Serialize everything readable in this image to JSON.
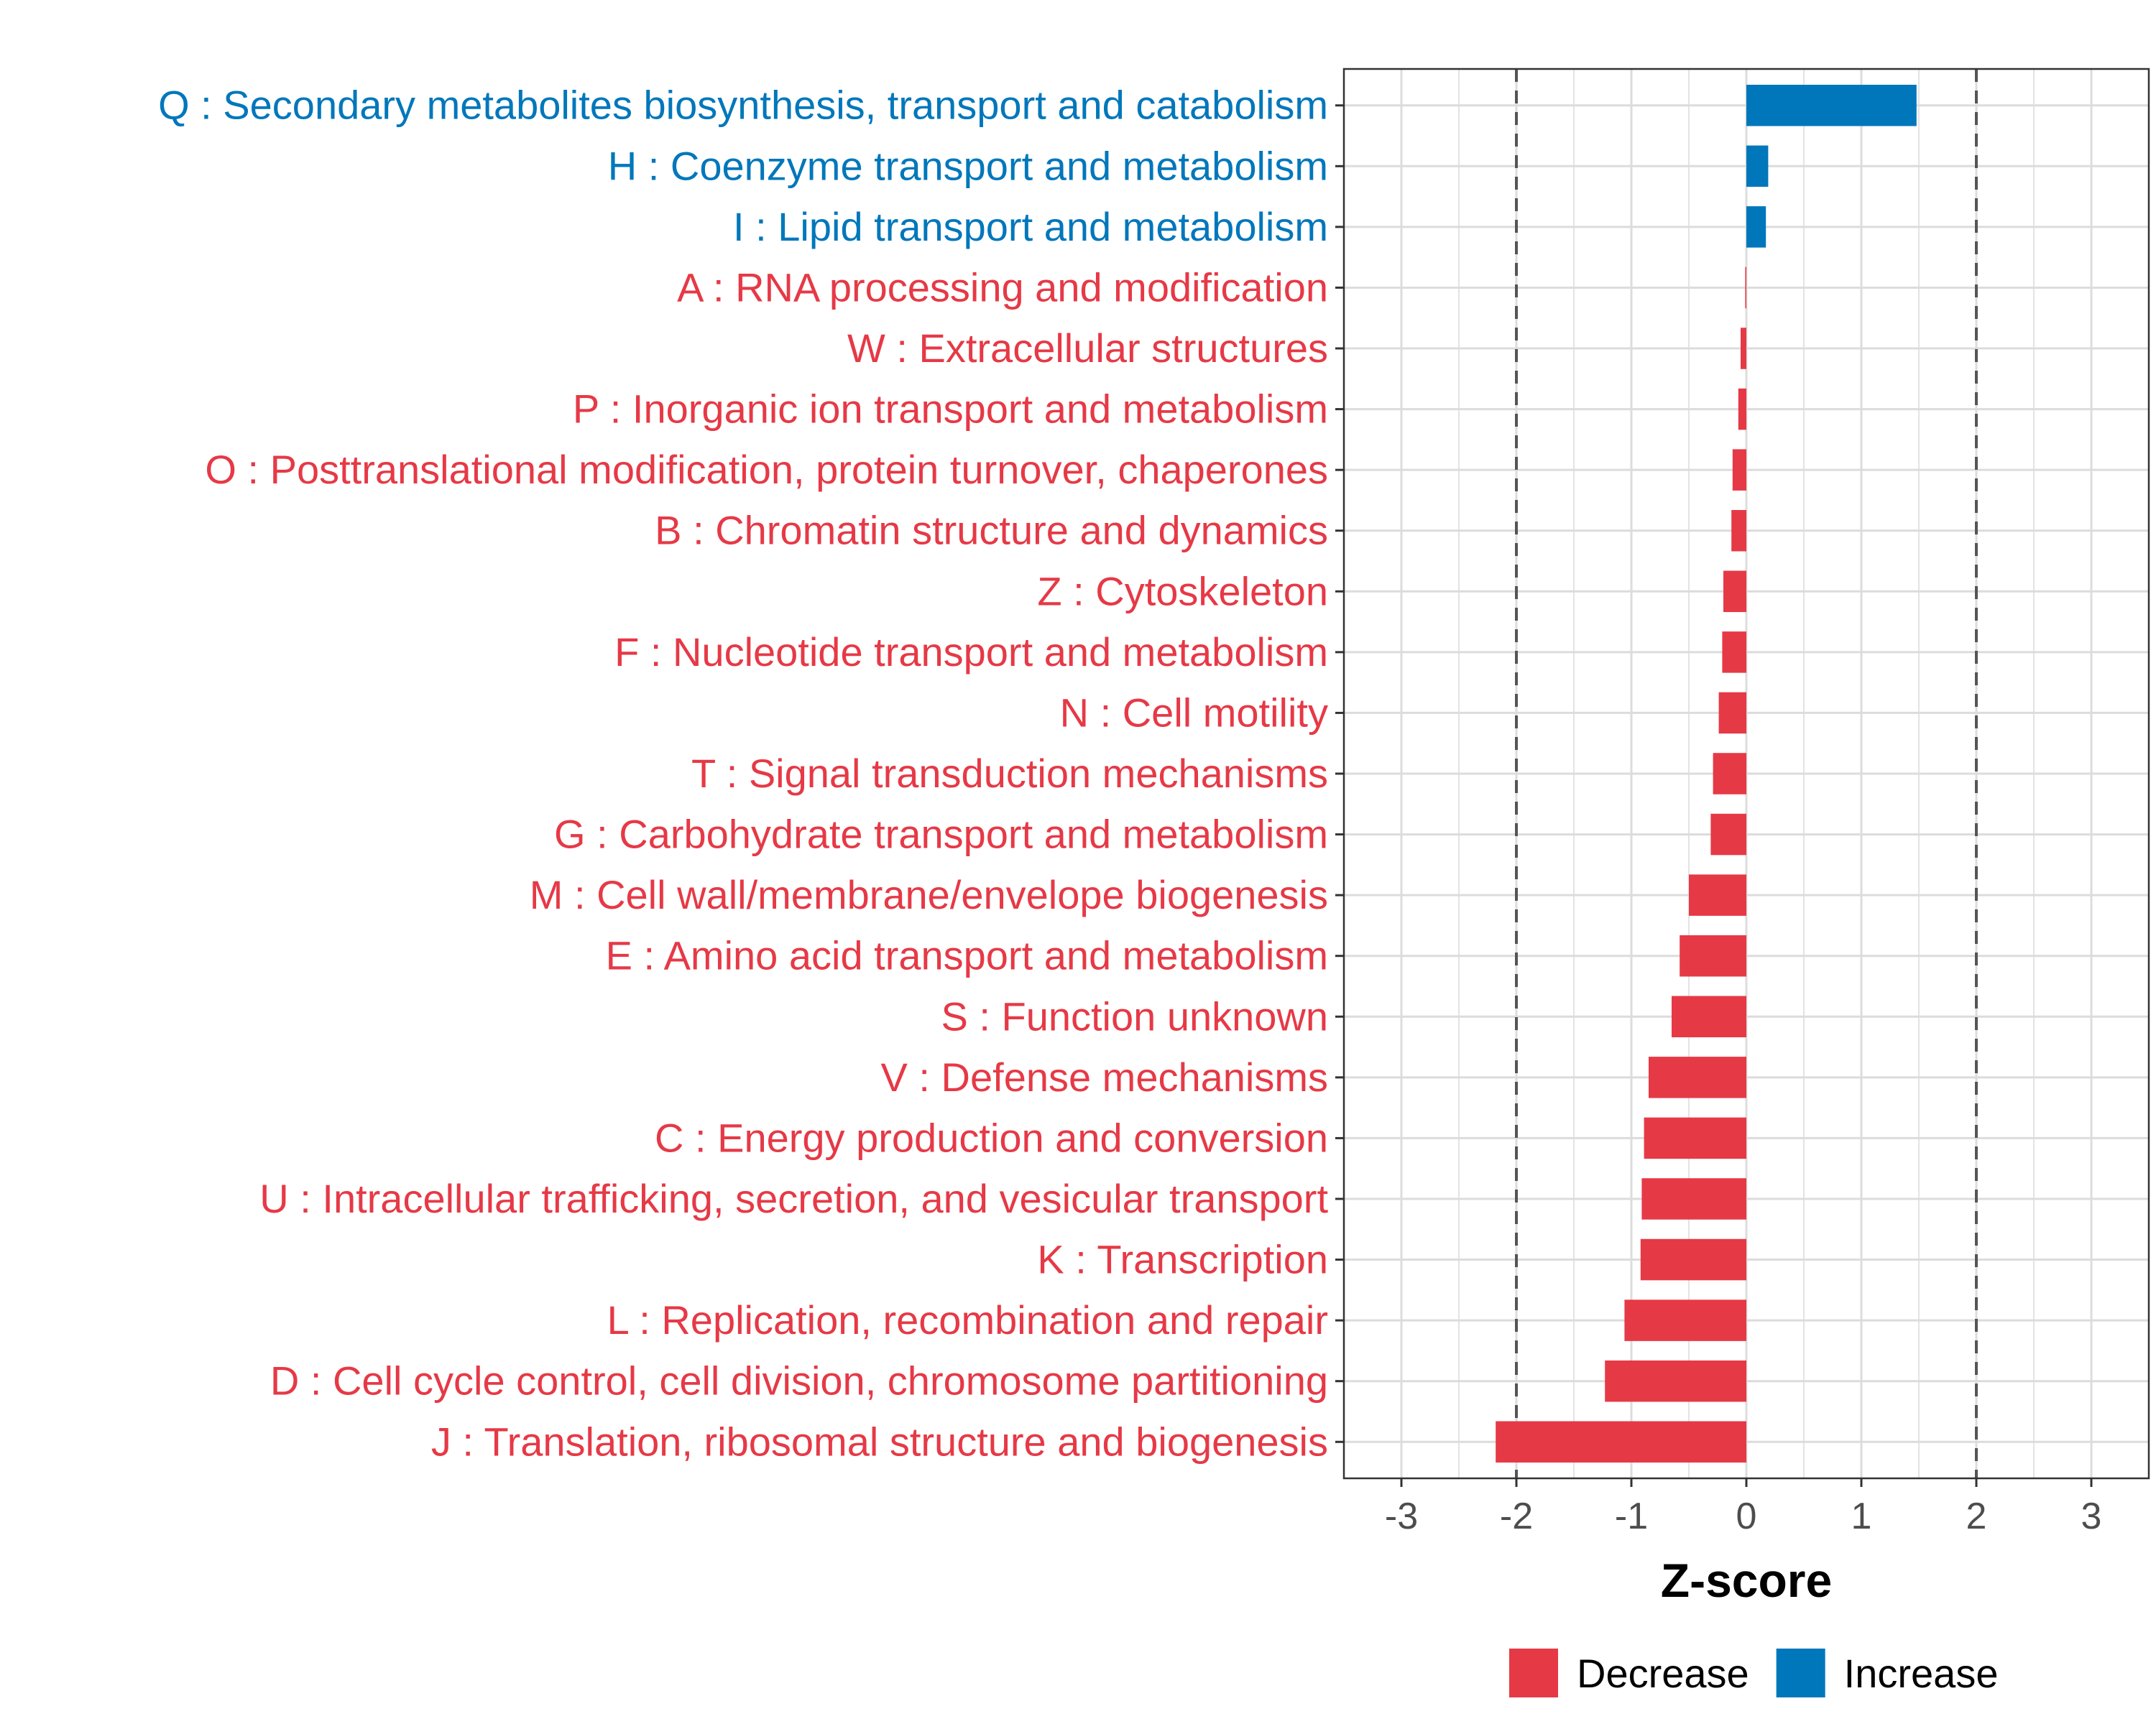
{
  "colors": {
    "decrease": "#E63946",
    "increase": "#0077BB",
    "grid": "#DCDCDC",
    "panel_border": "#333333",
    "ref_line": "#555555"
  },
  "chart_data": {
    "type": "bar",
    "orientation": "horizontal",
    "title": "",
    "xlabel": "Z-score",
    "ylabel": "",
    "xlim": [
      -3.5,
      3.5
    ],
    "xticks": [
      -3,
      -2,
      -1,
      0,
      1,
      2,
      3
    ],
    "xtick_labels": [
      "-3",
      "-2",
      "-1",
      "0",
      "1",
      "2",
      "3"
    ],
    "reference_lines": [
      -2,
      2
    ],
    "grid": true,
    "legend_position": "bottom",
    "legend": [
      {
        "key": "decrease",
        "label": "Decrease"
      },
      {
        "key": "increase",
        "label": "Increase"
      }
    ],
    "categories": [
      "Q : Secondary metabolites biosynthesis, transport and catabolism",
      "H : Coenzyme transport and metabolism",
      "I : Lipid transport and metabolism",
      "A : RNA processing and modification",
      "W : Extracellular structures",
      "P : Inorganic ion transport and metabolism",
      "O : Posttranslational modification, protein turnover, chaperones",
      "B : Chromatin structure and dynamics",
      "Z : Cytoskeleton",
      "F : Nucleotide transport and metabolism",
      "N : Cell motility",
      "T : Signal transduction mechanisms",
      "G : Carbohydrate transport and metabolism",
      "M : Cell wall/membrane/envelope biogenesis",
      "E : Amino acid transport and metabolism",
      "S : Function unknown",
      "V : Defense mechanisms",
      "C : Energy production and conversion",
      "U : Intracellular trafficking, secretion, and vesicular transport",
      "K : Transcription",
      "L : Replication, recombination and repair",
      "D : Cell cycle control, cell division, chromosome partitioning",
      "J : Translation, ribosomal structure and biogenesis"
    ],
    "values": [
      1.48,
      0.19,
      0.17,
      -0.01,
      -0.05,
      -0.07,
      -0.12,
      -0.13,
      -0.2,
      -0.21,
      -0.24,
      -0.29,
      -0.31,
      -0.5,
      -0.58,
      -0.65,
      -0.85,
      -0.89,
      -0.91,
      -0.92,
      -1.06,
      -1.23,
      -2.18
    ],
    "groups": [
      "increase",
      "increase",
      "increase",
      "decrease",
      "decrease",
      "decrease",
      "decrease",
      "decrease",
      "decrease",
      "decrease",
      "decrease",
      "decrease",
      "decrease",
      "decrease",
      "decrease",
      "decrease",
      "decrease",
      "decrease",
      "decrease",
      "decrease",
      "decrease",
      "decrease",
      "decrease"
    ]
  }
}
